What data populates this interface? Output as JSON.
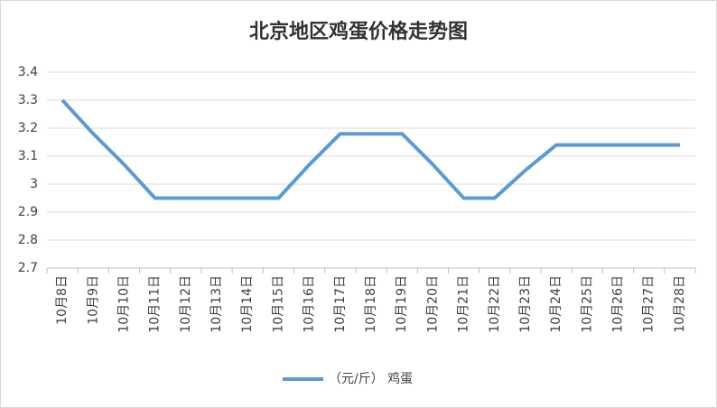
{
  "chart_data": {
    "type": "line",
    "title": "北京地区鸡蛋价格走势图",
    "categories": [
      "10月8日",
      "10月9日",
      "10月10日",
      "10月11日",
      "10月12日",
      "10月13日",
      "10月14日",
      "10月15日",
      "10月16日",
      "10月17日",
      "10月18日",
      "10月19日",
      "10月20日",
      "10月21日",
      "10月22日",
      "10月23日",
      "10月24日",
      "10月25日",
      "10月26日",
      "10月27日",
      "10月28日"
    ],
    "series": [
      {
        "name": "（元/斤） 鸡蛋",
        "color": "#5b9bd5",
        "values": [
          3.3,
          3.18,
          3.07,
          2.95,
          2.95,
          2.95,
          2.95,
          2.95,
          3.07,
          3.18,
          3.18,
          3.18,
          3.07,
          2.95,
          2.95,
          3.05,
          3.14,
          3.14,
          3.14,
          3.14,
          3.14
        ]
      }
    ],
    "ylim": [
      2.7,
      3.4
    ],
    "yticks": [
      2.7,
      2.8,
      2.9,
      3,
      3.1,
      3.2,
      3.3,
      3.4
    ],
    "grid": true,
    "legend": "bottom"
  }
}
